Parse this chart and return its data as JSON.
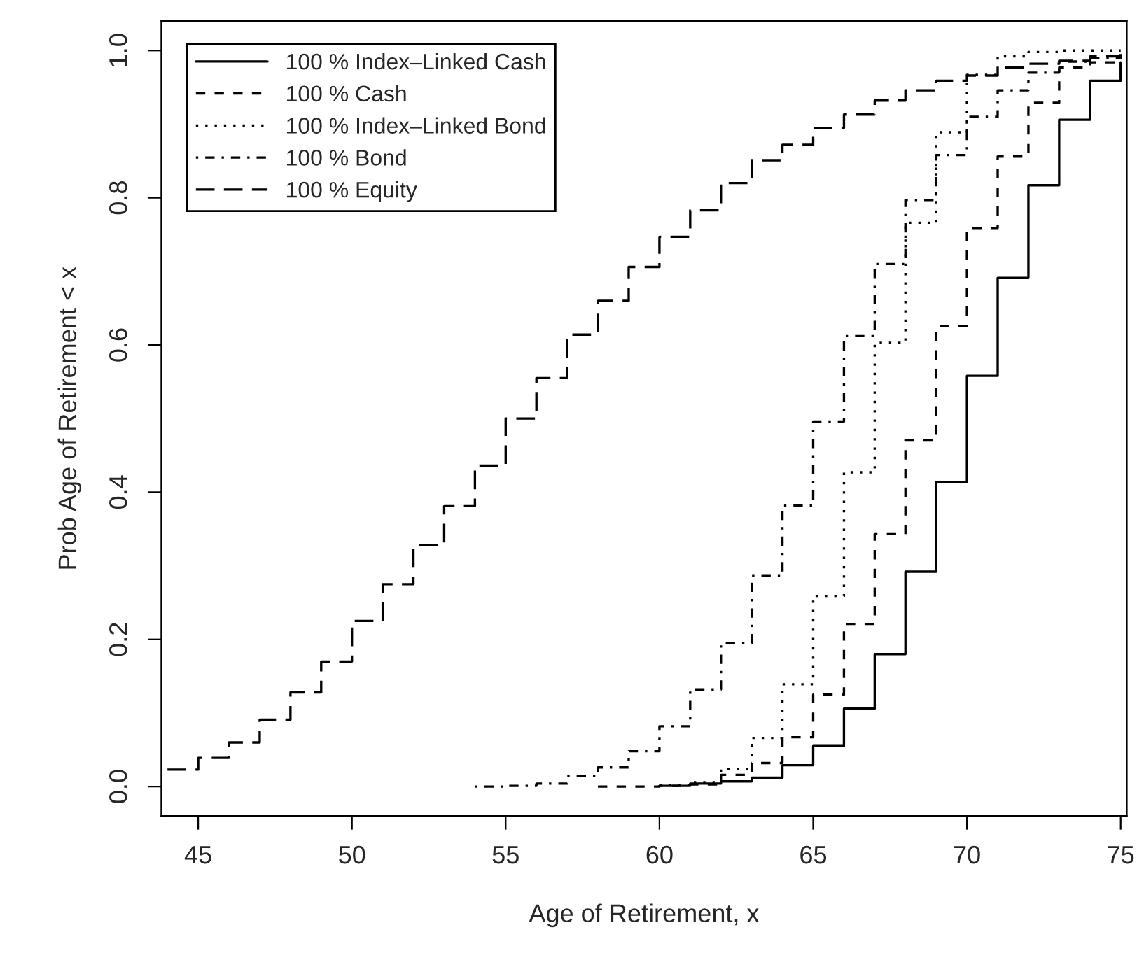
{
  "chart_data": {
    "type": "step",
    "xlabel": "Age of Retirement, x",
    "ylabel": "Prob Age of Retirement < x",
    "xlim": [
      43.8,
      75.2
    ],
    "ylim": [
      -0.04,
      1.04
    ],
    "xticks": [
      45,
      50,
      55,
      60,
      65,
      70,
      75
    ],
    "yticks": [
      {
        "value": 0,
        "label": "0.0"
      },
      {
        "value": 0.2,
        "label": "0.2"
      },
      {
        "value": 0.4,
        "label": "0.4"
      },
      {
        "value": 0.6,
        "label": "0.6"
      },
      {
        "value": 0.8,
        "label": "0.8"
      },
      {
        "value": 1,
        "label": "1.0"
      }
    ],
    "grid": false,
    "legend": "top left",
    "marker": "none",
    "series": [
      {
        "name": "100 % Index–Linked Cash",
        "color": "#000000",
        "line_style": "solid",
        "x": [
          60,
          61,
          62,
          63,
          64,
          65,
          66,
          67,
          68,
          69,
          70,
          71,
          72,
          73,
          74,
          75
        ],
        "values": [
          0.001,
          0.004,
          0.007,
          0.012,
          0.029,
          0.055,
          0.106,
          0.18,
          0.292,
          0.414,
          0.558,
          0.691,
          0.817,
          0.906,
          0.959,
          0.984
        ]
      },
      {
        "name": "100 % Cash",
        "color": "#000000",
        "line_style": "dashed",
        "x": [
          58,
          59,
          60,
          61,
          62,
          63,
          64,
          65,
          66,
          67,
          68,
          69,
          70,
          71,
          72,
          73,
          74,
          75
        ],
        "values": [
          0,
          0,
          0.001,
          0.003,
          0.016,
          0.032,
          0.067,
          0.125,
          0.221,
          0.343,
          0.471,
          0.626,
          0.759,
          0.856,
          0.929,
          0.977,
          0.984,
          0.99
        ]
      },
      {
        "name": "100 % Index–Linked Bond",
        "color": "#000000",
        "line_style": "dotted",
        "x": [
          60,
          61,
          62,
          63,
          64,
          65,
          66,
          67,
          68,
          69,
          70,
          71,
          72,
          73,
          74,
          75
        ],
        "values": [
          0.002,
          0.006,
          0.024,
          0.066,
          0.139,
          0.259,
          0.427,
          0.603,
          0.766,
          0.889,
          0.967,
          0.992,
          0.998,
          1,
          1,
          1
        ]
      },
      {
        "name": "100 % Bond",
        "color": "#000000",
        "line_style": "dashdot",
        "x": [
          54,
          55,
          56,
          57,
          58,
          59,
          60,
          61,
          62,
          63,
          64,
          65,
          66,
          67,
          68,
          69,
          70,
          71,
          72,
          73,
          74,
          75
        ],
        "values": [
          0,
          0.001,
          0.004,
          0.014,
          0.026,
          0.048,
          0.082,
          0.132,
          0.195,
          0.286,
          0.382,
          0.496,
          0.612,
          0.71,
          0.797,
          0.858,
          0.91,
          0.946,
          0.97,
          0.985,
          0.99,
          0.995
        ]
      },
      {
        "name": "100 % Equity",
        "color": "#000000",
        "line_style": "longdash",
        "x": [
          44,
          45,
          46,
          47,
          48,
          49,
          50,
          51,
          52,
          53,
          54,
          55,
          56,
          57,
          58,
          59,
          60,
          61,
          62,
          63,
          64,
          65,
          66,
          67,
          68,
          69,
          70,
          71,
          72,
          73,
          74,
          75
        ],
        "values": [
          0.023,
          0.039,
          0.06,
          0.091,
          0.128,
          0.17,
          0.225,
          0.275,
          0.328,
          0.381,
          0.436,
          0.5,
          0.555,
          0.614,
          0.66,
          0.706,
          0.747,
          0.783,
          0.82,
          0.851,
          0.872,
          0.895,
          0.913,
          0.932,
          0.946,
          0.959,
          0.966,
          0.977,
          0.982,
          0.986,
          0.992,
          0.995
        ]
      }
    ]
  }
}
